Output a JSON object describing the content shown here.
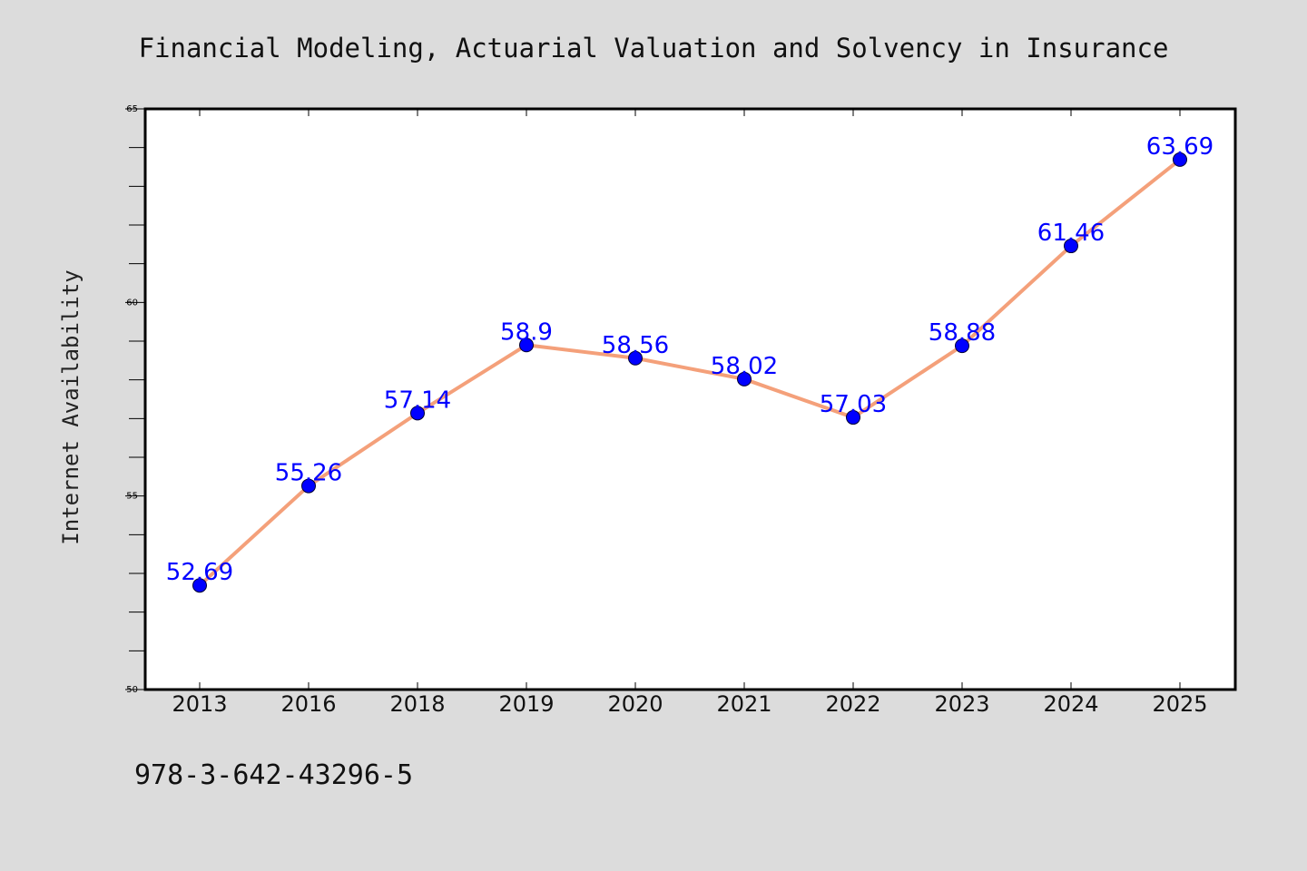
{
  "chart_data": {
    "type": "line",
    "title": "Financial Modeling, Actuarial Valuation and Solvency in Insurance",
    "xlabel": "",
    "ylabel": "Internet Availability",
    "categories": [
      "2013",
      "2016",
      "2018",
      "2019",
      "2020",
      "2021",
      "2022",
      "2023",
      "2024",
      "2025"
    ],
    "series": [
      {
        "values": [
          52.69,
          55.26,
          57.14,
          58.9,
          58.56,
          58.02,
          57.03,
          58.88,
          61.46,
          63.69
        ]
      }
    ],
    "data_labels": [
      "52.69",
      "55.26",
      "57.14",
      "58.9",
      "58.56",
      "58.02",
      "57.03",
      "58.88",
      "61.46",
      "63.69"
    ],
    "ylim": [
      50,
      65
    ],
    "yticks": [
      "50",
      "55",
      "60",
      "65"
    ],
    "grid": false,
    "colors": {
      "line": "#f4a07a",
      "marker": "#0000ff",
      "data_label": "#0000ff",
      "plot_background": "#ffffff",
      "page_background": "#dcdcdc"
    }
  },
  "footer": {
    "isbn": "978-3-642-43296-5"
  }
}
